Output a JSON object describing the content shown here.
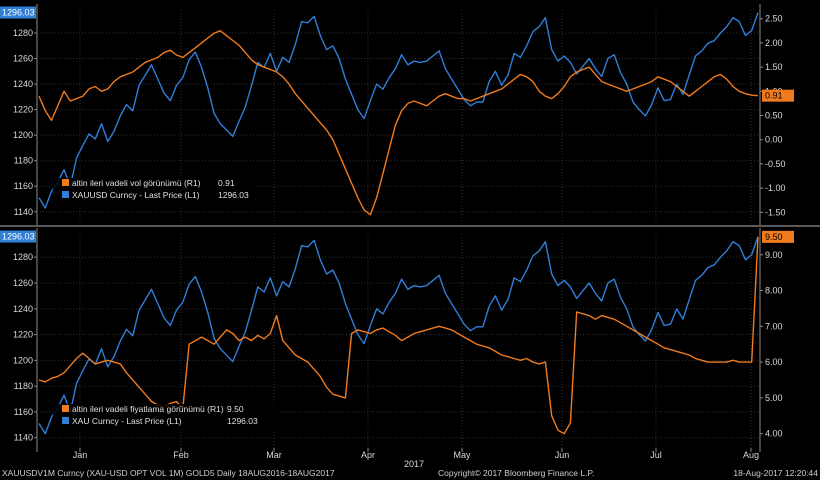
{
  "colors": {
    "orange": "#f07b1e",
    "blue": "#2f7fd8",
    "grid": "#2f2f2f",
    "axis": "#8a8a8a"
  },
  "chart_data": [
    {
      "type": "line",
      "left_axis": {
        "ticks": [
          1140,
          1160,
          1180,
          1200,
          1220,
          1240,
          1260,
          1280
        ],
        "range": [
          1132,
          1298
        ]
      },
      "right_axis": {
        "ticks": [
          "-1.50",
          "-1.00",
          "-0.50",
          "0.00",
          "0.50",
          "1.00",
          "1.50",
          "2.00",
          "2.50"
        ],
        "range": [
          -1.7,
          2.68
        ]
      },
      "legend": [
        {
          "name": "altin ileri vadeli vol görünümü (R1)",
          "value": "0.91"
        },
        {
          "name": "XAUUSD Curncy - Last Price (L1)",
          "value": "1296.03"
        }
      ],
      "last_labels": {
        "left": "1296.03",
        "right": "0.91"
      },
      "series": [
        {
          "name": "XAUUSD Curncy - Last Price (L1)",
          "axis": "left",
          "color": "blue",
          "values": [
            1151,
            1143,
            1156,
            1163,
            1173,
            1160,
            1182,
            1192,
            1201,
            1197,
            1209,
            1195,
            1203,
            1215,
            1224,
            1219,
            1239,
            1247,
            1255,
            1244,
            1233,
            1227,
            1239,
            1245,
            1259,
            1265,
            1253,
            1237,
            1217,
            1209,
            1204,
            1199,
            1211,
            1222,
            1239,
            1257,
            1253,
            1264,
            1250,
            1261,
            1257,
            1271,
            1289,
            1288,
            1293,
            1278,
            1267,
            1270,
            1260,
            1244,
            1232,
            1220,
            1213,
            1227,
            1240,
            1236,
            1245,
            1252,
            1263,
            1255,
            1258,
            1257,
            1258,
            1262,
            1266,
            1252,
            1244,
            1236,
            1228,
            1223,
            1226,
            1226,
            1242,
            1250,
            1239,
            1247,
            1264,
            1261,
            1270,
            1281,
            1285,
            1292,
            1267,
            1258,
            1262,
            1257,
            1248,
            1254,
            1260,
            1252,
            1246,
            1260,
            1263,
            1249,
            1240,
            1226,
            1220,
            1215,
            1224,
            1237,
            1227,
            1228,
            1240,
            1232,
            1247,
            1262,
            1266,
            1272,
            1274,
            1280,
            1285,
            1292,
            1289,
            1278,
            1282,
            1296
          ]
        }
      ],
      "overlay_series": [
        {
          "name": "altin ileri vadeli vol görünümü (R1)",
          "axis": "right",
          "color": "orange",
          "values": [
            0.9,
            0.6,
            0.4,
            0.7,
            1.0,
            0.8,
            0.85,
            0.9,
            1.05,
            1.1,
            1.0,
            1.05,
            1.2,
            1.3,
            1.35,
            1.4,
            1.5,
            1.6,
            1.65,
            1.7,
            1.8,
            1.85,
            1.75,
            1.7,
            1.8,
            1.9,
            2.0,
            2.1,
            2.2,
            2.25,
            2.15,
            2.05,
            1.95,
            1.8,
            1.65,
            1.55,
            1.5,
            1.45,
            1.4,
            1.3,
            1.15,
            0.95,
            0.8,
            0.65,
            0.5,
            0.35,
            0.2,
            0.0,
            -0.3,
            -0.6,
            -0.9,
            -1.2,
            -1.45,
            -1.55,
            -1.2,
            -0.7,
            -0.2,
            0.3,
            0.6,
            0.75,
            0.8,
            0.75,
            0.7,
            0.8,
            0.9,
            0.95,
            0.9,
            0.85,
            0.85,
            0.8,
            0.85,
            0.9,
            0.95,
            1.0,
            1.05,
            1.15,
            1.25,
            1.35,
            1.3,
            1.2,
            1.0,
            0.9,
            0.85,
            0.95,
            1.1,
            1.3,
            1.4,
            1.45,
            1.5,
            1.35,
            1.2,
            1.15,
            1.1,
            1.05,
            1.0,
            1.05,
            1.1,
            1.15,
            1.2,
            1.3,
            1.25,
            1.2,
            1.1,
            1.0,
            0.9,
            1.0,
            1.1,
            1.2,
            1.3,
            1.35,
            1.25,
            1.1,
            1.0,
            0.95,
            0.92,
            0.91
          ]
        }
      ]
    },
    {
      "type": "line",
      "left_axis": {
        "ticks": [
          1140,
          1160,
          1180,
          1200,
          1220,
          1240,
          1260,
          1280
        ],
        "range": [
          1132,
          1298
        ]
      },
      "right_axis": {
        "ticks": [
          "4.00",
          "5.00",
          "6.00",
          "7.00",
          "8.00",
          "9.00"
        ],
        "range": [
          3.6,
          9.58
        ]
      },
      "legend": [
        {
          "name": "altin ileri vadeli fiyatlama görünümü (R1)",
          "value": "9.50"
        },
        {
          "name": "XAU Curncy - Last Price (L1)",
          "value": "1296.03"
        }
      ],
      "last_labels": {
        "left": "1296.03",
        "right": "9.50"
      },
      "x_ticks": [
        "Jan",
        "Feb",
        "Mar",
        "Apr",
        "May",
        "Jun",
        "Jul",
        "Aug"
      ],
      "x_year_label": "2017",
      "series": [
        {
          "name": "XAU Curncy - Last Price (L1)",
          "axis": "left",
          "color": "blue",
          "values": [
            1151,
            1143,
            1156,
            1163,
            1173,
            1160,
            1182,
            1192,
            1201,
            1197,
            1209,
            1195,
            1203,
            1215,
            1224,
            1219,
            1239,
            1247,
            1255,
            1244,
            1233,
            1227,
            1239,
            1245,
            1259,
            1265,
            1253,
            1237,
            1217,
            1209,
            1204,
            1199,
            1211,
            1222,
            1239,
            1257,
            1253,
            1264,
            1250,
            1261,
            1257,
            1271,
            1289,
            1288,
            1293,
            1278,
            1267,
            1270,
            1260,
            1244,
            1232,
            1220,
            1213,
            1227,
            1240,
            1236,
            1245,
            1252,
            1263,
            1255,
            1258,
            1257,
            1258,
            1262,
            1266,
            1252,
            1244,
            1236,
            1228,
            1223,
            1226,
            1226,
            1242,
            1250,
            1239,
            1247,
            1264,
            1261,
            1270,
            1281,
            1285,
            1292,
            1267,
            1258,
            1262,
            1257,
            1248,
            1254,
            1260,
            1252,
            1246,
            1260,
            1263,
            1249,
            1240,
            1226,
            1220,
            1215,
            1224,
            1237,
            1227,
            1228,
            1240,
            1232,
            1247,
            1262,
            1266,
            1272,
            1274,
            1280,
            1285,
            1292,
            1289,
            1278,
            1282,
            1296
          ]
        }
      ],
      "overlay_series": [
        {
          "name": "altin ileri vadeli fiyatlama görünümü (R1)",
          "axis": "right",
          "color": "orange",
          "values": [
            5.5,
            5.45,
            5.55,
            5.6,
            5.7,
            5.9,
            6.1,
            6.25,
            6.1,
            5.95,
            6.0,
            6.05,
            6.0,
            5.95,
            5.7,
            5.5,
            5.3,
            5.1,
            4.9,
            4.8,
            4.75,
            4.85,
            4.9,
            4.7,
            6.5,
            6.6,
            6.7,
            6.6,
            6.5,
            6.7,
            6.9,
            6.8,
            6.6,
            6.7,
            6.6,
            6.75,
            6.65,
            6.8,
            7.3,
            6.6,
            6.4,
            6.2,
            6.1,
            6.0,
            5.8,
            5.6,
            5.3,
            5.1,
            5.05,
            5.0,
            6.8,
            6.9,
            6.85,
            6.8,
            6.9,
            6.95,
            6.85,
            6.75,
            6.6,
            6.7,
            6.8,
            6.85,
            6.9,
            6.95,
            7.0,
            6.95,
            6.9,
            6.8,
            6.7,
            6.6,
            6.5,
            6.45,
            6.4,
            6.3,
            6.2,
            6.15,
            6.1,
            6.05,
            6.1,
            6.0,
            5.95,
            6.0,
            4.5,
            4.1,
            4.0,
            4.3,
            7.4,
            7.35,
            7.3,
            7.2,
            7.3,
            7.25,
            7.2,
            7.1,
            7.0,
            6.9,
            6.8,
            6.7,
            6.6,
            6.5,
            6.4,
            6.35,
            6.3,
            6.25,
            6.2,
            6.1,
            6.05,
            6.0,
            6.0,
            6.0,
            6.0,
            6.05,
            6.0,
            6.0,
            6.0,
            9.5
          ]
        }
      ]
    }
  ],
  "footer": {
    "left": "XAUUSDV1M Curncy (XAU-USD OPT VOL 1M) GOLD5  Daily 18AUG2016-18AUG2017",
    "center": "Copyright© 2017 Bloomberg Finance L.P.",
    "right": "18-Aug-2017 12:20:44"
  }
}
